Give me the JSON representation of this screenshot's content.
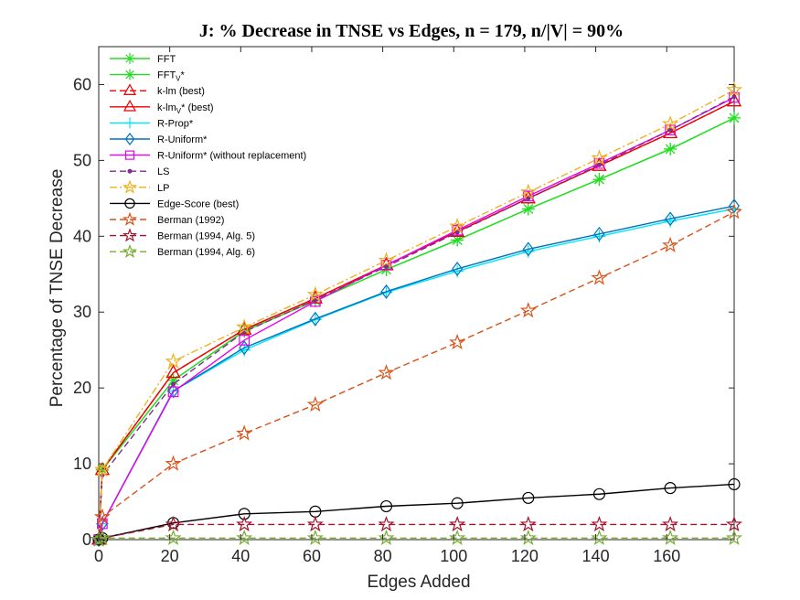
{
  "chart_data": {
    "type": "line",
    "title": "J: % Decrease in TNSE vs Edges, n = 179, n/|V| = 90%",
    "xlabel": "Edges Added",
    "ylabel": "Percentage of TNSE Decrease",
    "xlim": [
      0,
      179
    ],
    "ylim": [
      0,
      65
    ],
    "xticks": [
      0,
      20,
      40,
      60,
      80,
      100,
      120,
      140,
      160
    ],
    "yticks": [
      0,
      10,
      20,
      30,
      40,
      50,
      60
    ],
    "grid": false,
    "legend_position": "top-left",
    "x": [
      0,
      1,
      21,
      41,
      61,
      81,
      101,
      121,
      141,
      161,
      179
    ],
    "series": [
      {
        "name": "FFT",
        "color": "#22dd22",
        "dash": "solid",
        "marker": "asterisk",
        "values": [
          0,
          9.2,
          21.0,
          27.5,
          31.5,
          35.6,
          39.5,
          43.6,
          47.5,
          51.5,
          55.6
        ]
      },
      {
        "name": "FFT_V*",
        "label_main": "FFT",
        "label_sub": "V",
        "label_suffix": "*",
        "color": "#22dd22",
        "dash": "solid",
        "marker": "asterisk",
        "values": [
          0,
          9.2,
          21.0,
          27.5,
          31.5,
          35.6,
          39.5,
          43.6,
          47.5,
          51.5,
          55.6
        ]
      },
      {
        "name": "k-lm (best)",
        "color": "#ee0000",
        "dash": "dashed",
        "marker": "triangle",
        "values": [
          0,
          9.2,
          22.0,
          27.7,
          31.8,
          36.2,
          40.6,
          45.0,
          49.3,
          53.6,
          57.8
        ]
      },
      {
        "name": "k-lm_V* (best)",
        "label_main": "k-lm",
        "label_sub": "V",
        "label_suffix": "* (best)",
        "color": "#ee0000",
        "dash": "solid",
        "marker": "triangle",
        "values": [
          0,
          9.2,
          22.0,
          27.7,
          31.8,
          36.2,
          40.6,
          45.0,
          49.3,
          53.6,
          57.8
        ]
      },
      {
        "name": "R-Prop*",
        "color": "#00e5ff",
        "dash": "solid",
        "marker": "plus",
        "values": [
          0,
          2.1,
          19.6,
          25.0,
          29.0,
          32.6,
          35.4,
          38.0,
          40.0,
          42.0,
          43.6
        ]
      },
      {
        "name": "R-Uniform*",
        "color": "#0072bd",
        "dash": "solid",
        "marker": "diamond",
        "values": [
          0,
          2.1,
          19.6,
          25.3,
          29.1,
          32.7,
          35.7,
          38.3,
          40.3,
          42.3,
          44.0
        ]
      },
      {
        "name": "R-Uniform* (without replacement)",
        "color": "#ee00ee",
        "dash": "solid",
        "marker": "square",
        "values": [
          0,
          2.1,
          19.5,
          26.3,
          31.4,
          36.2,
          40.8,
          45.3,
          49.6,
          54.0,
          58.3
        ]
      },
      {
        "name": "LS",
        "color": "#7e2f8e",
        "dash": "dashed",
        "marker": "dot",
        "values": [
          0,
          8.5,
          20.5,
          27.4,
          31.6,
          36.0,
          40.5,
          45.0,
          49.4,
          54.0,
          58.4
        ]
      },
      {
        "name": "LP",
        "color": "#edb120",
        "dash": "dashdot",
        "marker": "pentagram",
        "values": [
          0,
          9.2,
          23.5,
          28.0,
          32.3,
          36.8,
          41.3,
          45.8,
          50.3,
          54.8,
          59.3
        ]
      },
      {
        "name": "Edge-Score (best)",
        "color": "#000000",
        "dash": "solid",
        "marker": "circle",
        "values": [
          0,
          0.2,
          2.2,
          3.4,
          3.7,
          4.4,
          4.8,
          5.5,
          6.0,
          6.8,
          7.3
        ]
      },
      {
        "name": "Berman (1992)",
        "color": "#d95319",
        "dash": "dashed",
        "marker": "pentagram",
        "values": [
          0,
          3.0,
          10.0,
          14.0,
          17.8,
          22.0,
          26.0,
          30.2,
          34.5,
          38.8,
          43.2
        ]
      },
      {
        "name": "Berman (1994, Alg. 5)",
        "color": "#a2142f",
        "dash": "dashed",
        "marker": "pentagram",
        "values": [
          0,
          0.2,
          2.0,
          2.0,
          2.0,
          2.0,
          2.0,
          2.0,
          2.0,
          2.0,
          2.0
        ]
      },
      {
        "name": "Berman (1994, Alg. 6)",
        "color": "#77ac30",
        "dash": "dashed",
        "marker": "pentagram",
        "values": [
          0,
          0.2,
          0.2,
          0.2,
          0.2,
          0.2,
          0.2,
          0.2,
          0.2,
          0.2,
          0.2
        ]
      }
    ]
  }
}
